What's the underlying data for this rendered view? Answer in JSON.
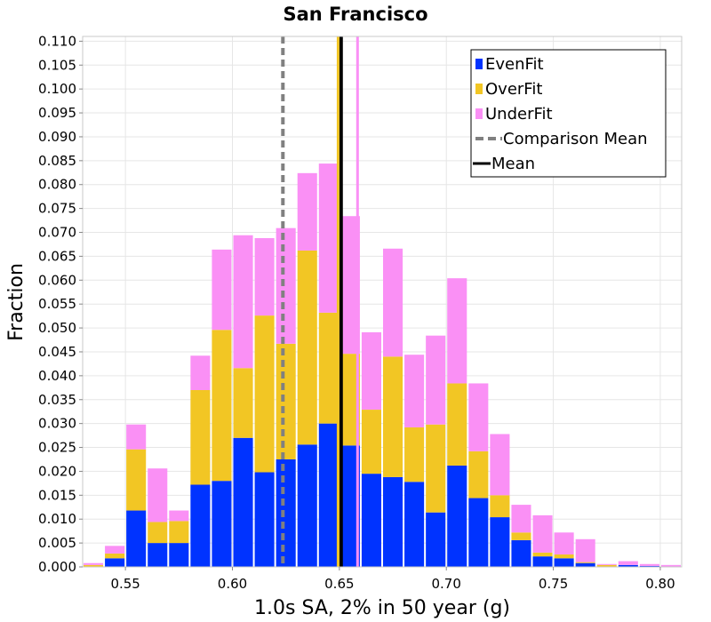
{
  "chart_data": {
    "type": "bar",
    "stacked": true,
    "title": "San Francisco",
    "xlabel": "1.0s SA, 2% in 50 year (g)",
    "ylabel": "Fraction",
    "xlim": [
      0.53,
      0.81
    ],
    "ylim": [
      0,
      0.111
    ],
    "bin_width": 0.01,
    "x_ticks": [
      "0.55",
      "0.60",
      "0.65",
      "0.70",
      "0.75",
      "0.80"
    ],
    "y_ticks": [
      "0.000",
      "0.005",
      "0.010",
      "0.015",
      "0.020",
      "0.025",
      "0.030",
      "0.035",
      "0.040",
      "0.045",
      "0.050",
      "0.055",
      "0.060",
      "0.065",
      "0.070",
      "0.075",
      "0.080",
      "0.085",
      "0.090",
      "0.095",
      "0.100",
      "0.105",
      "0.110"
    ],
    "grid": true,
    "legend_position": "top-right",
    "x": [
      0.535,
      0.545,
      0.555,
      0.565,
      0.575,
      0.585,
      0.595,
      0.605,
      0.615,
      0.625,
      0.635,
      0.645,
      0.655,
      0.665,
      0.675,
      0.685,
      0.695,
      0.705,
      0.715,
      0.725,
      0.735,
      0.745,
      0.755,
      0.765,
      0.775,
      0.785,
      0.795,
      0.805
    ],
    "series": [
      {
        "name": "EvenFit",
        "color": "#0033ff",
        "values": [
          0.0,
          0.0018,
          0.0118,
          0.005,
          0.005,
          0.0172,
          0.018,
          0.027,
          0.0198,
          0.0225,
          0.0256,
          0.03,
          0.0254,
          0.0195,
          0.0188,
          0.0178,
          0.0114,
          0.0212,
          0.0144,
          0.0104,
          0.0056,
          0.0022,
          0.0018,
          0.0008,
          0.0,
          0.0004,
          0.0002,
          0.0
        ]
      },
      {
        "name": "OverFit",
        "color": "#f2c624",
        "values": [
          0.0004,
          0.001,
          0.0128,
          0.0044,
          0.0046,
          0.0198,
          0.0316,
          0.0146,
          0.0328,
          0.0242,
          0.0406,
          0.0232,
          0.0192,
          0.0134,
          0.0252,
          0.0114,
          0.0184,
          0.0172,
          0.0098,
          0.0046,
          0.0016,
          0.0008,
          0.0008,
          0.0002,
          0.0004,
          0.0,
          0.0,
          0.0
        ]
      },
      {
        "name": "UnderFit",
        "color": "#fa90f5",
        "values": [
          0.0004,
          0.0016,
          0.0052,
          0.0112,
          0.0022,
          0.0072,
          0.0168,
          0.0278,
          0.0162,
          0.0242,
          0.0162,
          0.0312,
          0.0288,
          0.0162,
          0.0226,
          0.0152,
          0.0186,
          0.022,
          0.0142,
          0.0128,
          0.0058,
          0.0078,
          0.0046,
          0.0048,
          0.0002,
          0.0008,
          0.0004,
          0.0004
        ]
      }
    ],
    "lines": [
      {
        "name": "Comparison Mean",
        "x": 0.6236,
        "color": "#808080",
        "style": "dashed"
      },
      {
        "name": "Mean",
        "x": 0.6508,
        "color": "#000000",
        "style": "solid"
      },
      {
        "x": 0.6494,
        "color": "#f2c624",
        "style": "solid"
      },
      {
        "x": 0.6585,
        "color": "#fa90f5",
        "style": "solid"
      }
    ],
    "legend": [
      {
        "label": "EvenFit",
        "kind": "box",
        "color": "#0033ff"
      },
      {
        "label": "OverFit",
        "kind": "box",
        "color": "#f2c624"
      },
      {
        "label": "UnderFit",
        "kind": "box",
        "color": "#fa90f5"
      },
      {
        "label": "Comparison Mean",
        "kind": "dash",
        "color": "#808080"
      },
      {
        "label": "Mean",
        "kind": "line",
        "color": "#000000"
      }
    ]
  }
}
